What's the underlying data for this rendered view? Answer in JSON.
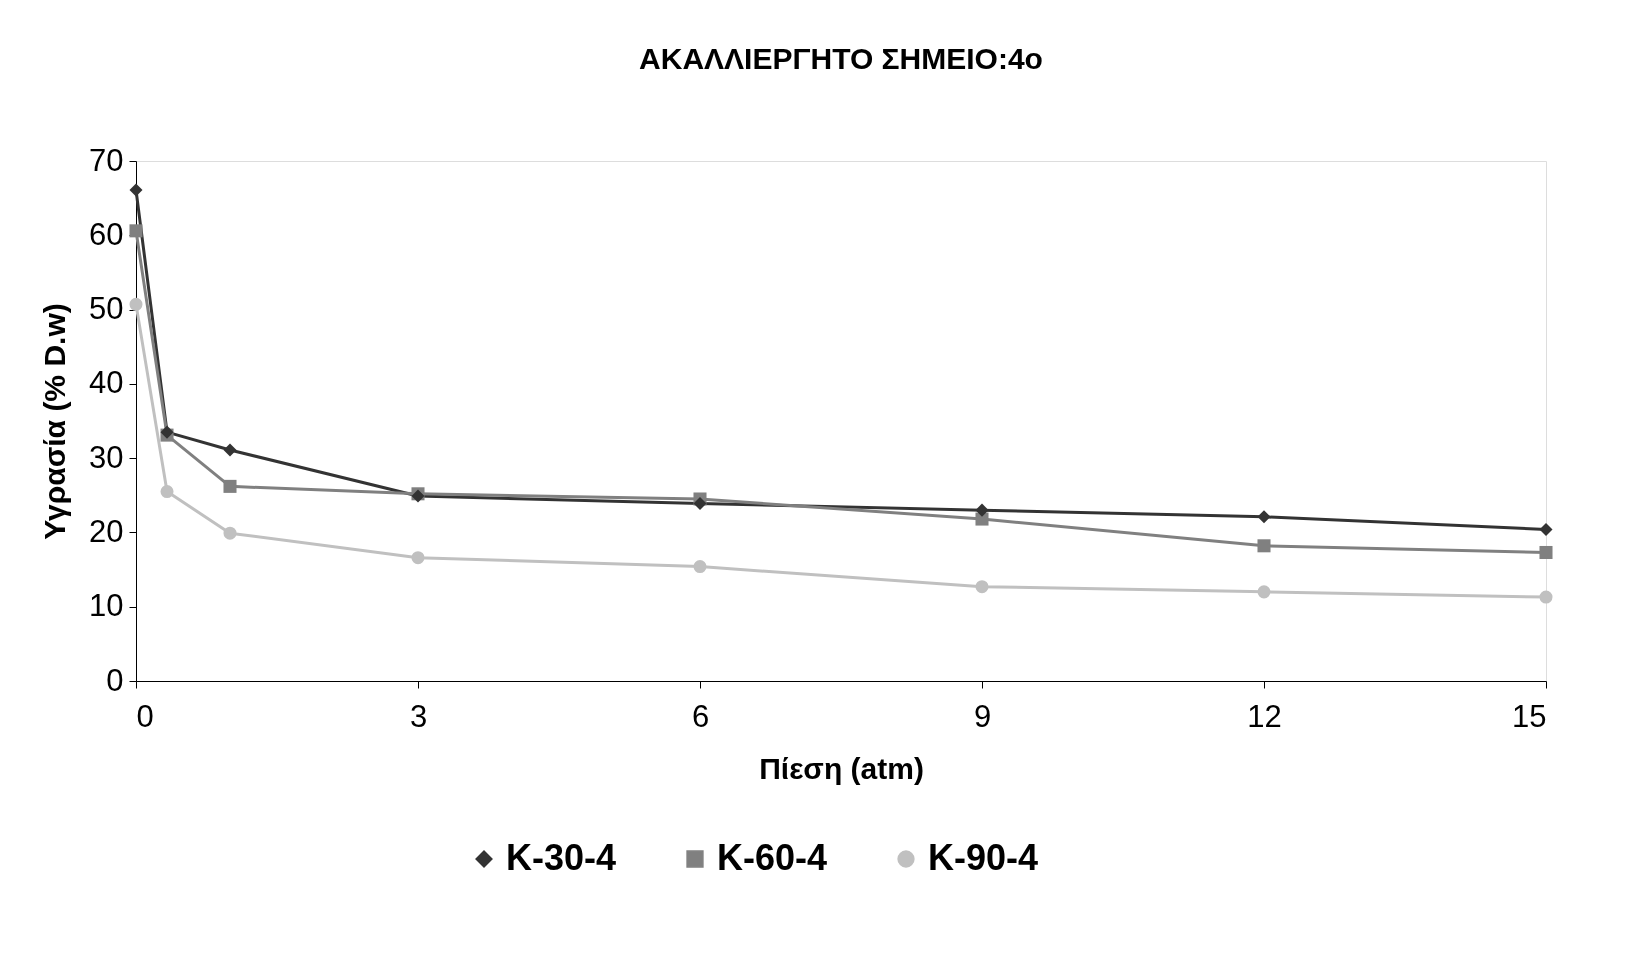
{
  "chart_data": {
    "type": "line",
    "title": "ΑΚΑΛΛΙΕΡΓΗΤΟ ΣΗΜΕΙΟ:4ο",
    "xlabel": "Πίεση (atm)",
    "ylabel": "Υγρασία (% D.w)",
    "x": [
      0,
      0.33,
      1,
      3,
      6,
      9,
      12,
      15
    ],
    "series": [
      {
        "name": "K-30-4",
        "color": "#333333",
        "marker": "diamond",
        "values": [
          66.1,
          33.5,
          31.1,
          24.9,
          23.9,
          23.0,
          22.1,
          20.4
        ]
      },
      {
        "name": "K-60-4",
        "color": "#808080",
        "marker": "square",
        "values": [
          60.6,
          33.1,
          26.2,
          25.2,
          24.5,
          21.8,
          18.2,
          17.3
        ]
      },
      {
        "name": "K-90-4",
        "color": "#c0c0c0",
        "marker": "circle",
        "values": [
          50.7,
          25.5,
          19.9,
          16.6,
          15.4,
          12.7,
          12.0,
          11.3
        ]
      }
    ],
    "xlim": [
      0,
      15
    ],
    "xticks": [
      0,
      3,
      6,
      9,
      12,
      15
    ],
    "ylim": [
      0,
      70
    ],
    "yticks": [
      0,
      10,
      20,
      30,
      40,
      50,
      60,
      70
    ],
    "grid": false,
    "legend": "bottom",
    "line_style": "solid"
  }
}
